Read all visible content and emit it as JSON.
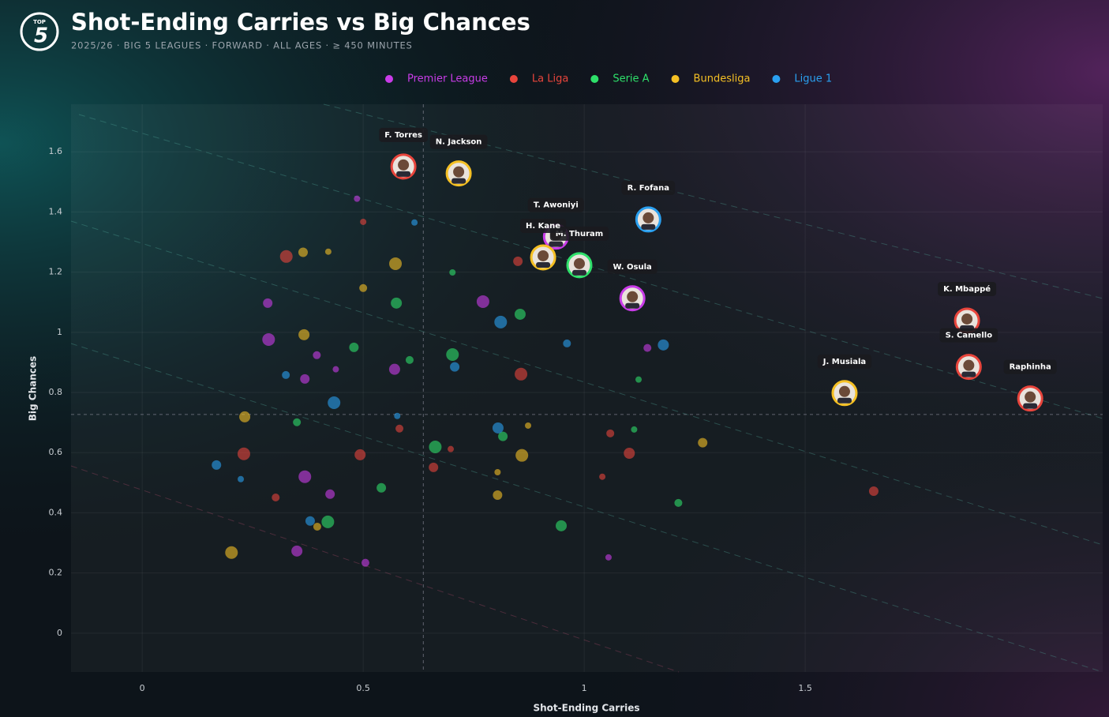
{
  "logo": {
    "top": "TOP",
    "number": "5"
  },
  "chart_data": {
    "type": "scatter",
    "title": "Shot-Ending Carries vs Big Chances",
    "subtitle": "2025/26 · BIG 5 LEAGUES · FORWARD · ALL AGES · ≥ 450 MINUTES",
    "x_label": "Shot-Ending Carries",
    "y_label": "Big Chances",
    "xlim": [
      -0.161,
      2.173
    ],
    "ylim": [
      -0.129,
      1.758
    ],
    "xticks": [
      0,
      0.5,
      1,
      1.5
    ],
    "yticks": [
      0,
      0.2,
      0.4,
      0.6,
      0.8,
      1,
      1.2,
      1.4,
      1.6
    ],
    "grid": true,
    "legend": "top",
    "reference_lines": {
      "x": 0.636,
      "y": 0.727
    },
    "series": [
      {
        "name": "Premier League",
        "color": "#c93ce8",
        "x": [
          0.486,
          0.284,
          0.771,
          1.143,
          0.571,
          0.438,
          0.368,
          0.368,
          0.505,
          0.35,
          1.055,
          0.425,
          0.286,
          0.395,
          0.936,
          1.109
        ],
        "values": [
          1.444,
          1.097,
          1.102,
          0.948,
          0.877,
          0.877,
          0.845,
          0.52,
          0.234,
          0.273,
          0.252,
          0.462,
          0.976,
          0.924,
          1.318,
          1.113
        ],
        "labels": [
          null,
          null,
          null,
          null,
          null,
          null,
          null,
          null,
          null,
          null,
          null,
          null,
          null,
          null,
          "T. Awoniyi",
          "W. Osula"
        ]
      },
      {
        "name": "La Liga",
        "color": "#e8453c",
        "x": [
          0.5,
          0.85,
          0.857,
          1.059,
          1.102,
          1.041,
          1.655,
          0.23,
          0.302,
          0.493,
          0.698,
          0.659,
          0.326,
          0.582,
          0.591,
          1.866,
          1.87,
          2.009
        ],
        "values": [
          1.367,
          1.236,
          0.861,
          0.664,
          0.598,
          0.52,
          0.472,
          0.596,
          0.451,
          0.593,
          0.612,
          0.551,
          1.252,
          0.68,
          1.551,
          1.039,
          0.885,
          0.78
        ],
        "labels": [
          null,
          null,
          null,
          null,
          null,
          null,
          null,
          null,
          null,
          null,
          null,
          null,
          null,
          null,
          "F. Torres",
          "K. Mbappé",
          "S. Camello",
          "Raphinha"
        ]
      },
      {
        "name": "Serie A",
        "color": "#2ee06a",
        "x": [
          0.702,
          0.479,
          0.702,
          0.605,
          0.855,
          1.123,
          0.816,
          0.663,
          1.213,
          0.948,
          1.113,
          0.541,
          0.42,
          0.35,
          0.575,
          0.989
        ],
        "values": [
          1.199,
          0.95,
          0.926,
          0.908,
          1.06,
          0.843,
          0.654,
          0.619,
          0.433,
          0.357,
          0.677,
          0.483,
          0.37,
          0.701,
          1.097,
          1.223
        ],
        "labels": [
          null,
          null,
          null,
          null,
          null,
          null,
          null,
          null,
          null,
          null,
          null,
          null,
          null,
          null,
          null,
          "M. Thuram"
        ]
      },
      {
        "name": "Bundesliga",
        "color": "#f5c024",
        "x": [
          0.421,
          0.364,
          0.573,
          0.5,
          0.366,
          0.804,
          0.804,
          0.859,
          0.396,
          0.232,
          0.873,
          1.268,
          0.202,
          0.716,
          0.907,
          1.589
        ],
        "values": [
          1.268,
          1.266,
          1.228,
          1.147,
          0.992,
          0.535,
          0.459,
          0.591,
          0.354,
          0.719,
          0.69,
          0.633,
          0.268,
          1.528,
          1.249,
          0.798
        ],
        "labels": [
          null,
          null,
          null,
          null,
          null,
          null,
          null,
          null,
          null,
          null,
          null,
          null,
          null,
          "N. Jackson",
          "H. Kane",
          "J. Musiala"
        ]
      },
      {
        "name": "Ligue 1",
        "color": "#2aa0f0",
        "x": [
          0.616,
          0.707,
          0.434,
          0.325,
          0.805,
          0.223,
          0.38,
          0.811,
          0.961,
          1.179,
          0.577,
          0.168,
          1.145
        ],
        "values": [
          1.365,
          0.885,
          0.766,
          0.858,
          0.682,
          0.512,
          0.373,
          1.034,
          0.963,
          0.958,
          0.722,
          0.559,
          1.375
        ],
        "labels": [
          null,
          null,
          null,
          null,
          null,
          null,
          null,
          null,
          null,
          null,
          null,
          null,
          "R. Fofana"
        ]
      }
    ]
  }
}
